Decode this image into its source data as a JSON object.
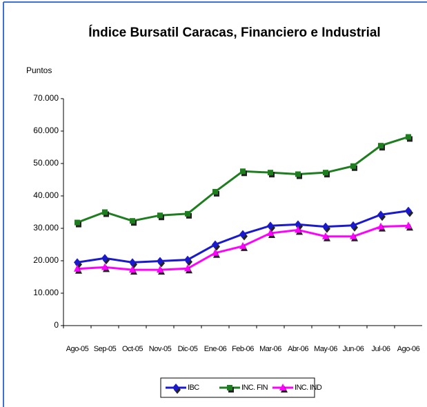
{
  "chart_data": {
    "type": "line",
    "title": "Índice Bursatil Caracas, Financiero e Industrial",
    "y_label": "Puntos",
    "categories": [
      "Ago-05",
      "Sep-05",
      "Oct-05",
      "Nov-05",
      "Dic-05",
      "Ene-06",
      "Feb-06",
      "Mar-06",
      "Abr-06",
      "May-06",
      "Jun-06",
      "Jul-06",
      "Ago-06"
    ],
    "series": [
      {
        "name": "IBC",
        "color": "#1a1acc",
        "marker": "diamond",
        "values": [
          19500,
          20800,
          19500,
          19900,
          20300,
          25000,
          28200,
          30800,
          31200,
          30500,
          30900,
          34200,
          35400
        ]
      },
      {
        "name": "INC. FIN",
        "color": "#1e7d1e",
        "marker": "square",
        "values": [
          31800,
          35000,
          32300,
          34000,
          34500,
          41300,
          47600,
          47200,
          46700,
          47200,
          49200,
          55500,
          58200
        ]
      },
      {
        "name": "INC. IND",
        "color": "#ff00ff",
        "marker": "triangle",
        "values": [
          17500,
          18000,
          17200,
          17200,
          17600,
          22400,
          24500,
          28500,
          29500,
          27500,
          27500,
          30500,
          30800
        ]
      }
    ],
    "ylim": [
      0,
      70000
    ],
    "yticks": [
      0,
      {
        "value": 10000,
        "label": "10.000"
      },
      {
        "value": 20000,
        "label": "20.000"
      },
      {
        "value": 30000,
        "label": "30.000"
      },
      {
        "value": 40000,
        "label": "40.000"
      },
      {
        "value": 50000,
        "label": "50.000"
      },
      {
        "value": 60000,
        "label": "60.000"
      },
      {
        "value": 70000,
        "label": "70.000"
      }
    ],
    "legend": "bottom"
  }
}
